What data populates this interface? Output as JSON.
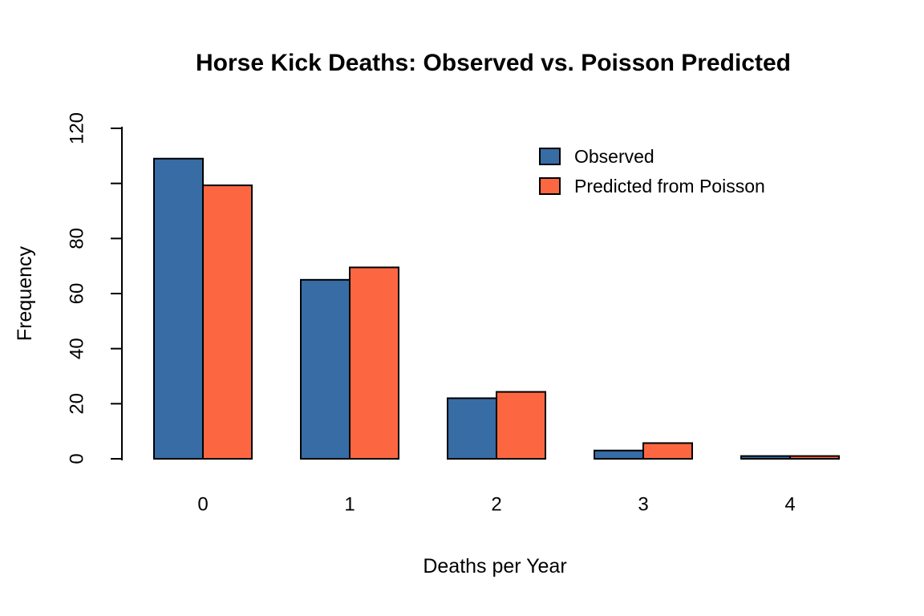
{
  "chart_data": {
    "type": "bar",
    "grouped": true,
    "title": "Horse Kick Deaths: Observed vs. Poisson Predicted",
    "xlabel": "Deaths per Year",
    "ylabel": "Frequency",
    "categories": [
      "0",
      "1",
      "2",
      "3",
      "4"
    ],
    "series": [
      {
        "name": "Observed",
        "color": "#376CA5",
        "values": [
          109,
          65,
          22,
          3,
          1
        ]
      },
      {
        "name": "Predicted from Poisson",
        "color": "#FC6742",
        "values": [
          99.3,
          69.5,
          24.3,
          5.7,
          1.0
        ]
      }
    ],
    "ylim": [
      0,
      120
    ],
    "yticks": [
      {
        "value": 0,
        "label": "0"
      },
      {
        "value": 20,
        "label": "20"
      },
      {
        "value": 40,
        "label": "40"
      },
      {
        "value": 60,
        "label": "60"
      },
      {
        "value": 80,
        "label": "80"
      },
      {
        "value": 100,
        "label": ""
      },
      {
        "value": 120,
        "label": "120"
      }
    ],
    "bar_edge_color": "#000000",
    "background_color": "#FFFFFF",
    "grid": "off",
    "legend": {
      "position": "top-right",
      "entries": [
        "Observed",
        "Predicted from Poisson"
      ]
    }
  }
}
